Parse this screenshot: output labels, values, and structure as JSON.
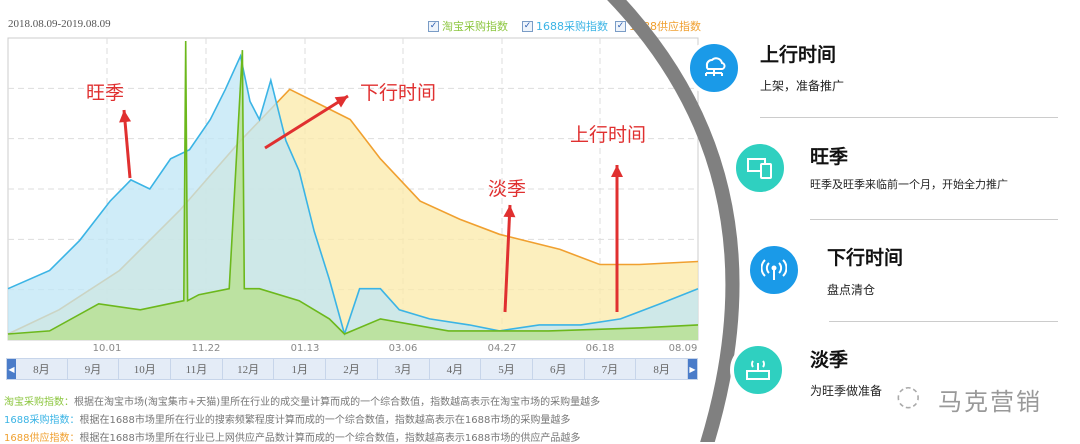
{
  "header": {
    "date_range": "2018.08.09-2019.08.09"
  },
  "legend": [
    {
      "label": "淘宝采购指数",
      "color": "#8cc63f",
      "checked": true
    },
    {
      "label": "1688采购指数",
      "color": "#3bb4e5",
      "checked": true
    },
    {
      "label": "1688供应指数",
      "color": "#f0a030",
      "checked": true
    }
  ],
  "chart_data": {
    "type": "area",
    "x_range": [
      "2018-08-09",
      "2019-08-09"
    ],
    "x_ticks": [
      "10.01",
      "11.22",
      "01.13",
      "03.06",
      "04.27",
      "06.18",
      "08.09"
    ],
    "y_axis_labels": false,
    "grid": true,
    "legend_position": "top-right",
    "series": [
      {
        "name": "1688供应指数",
        "color": "#f0a030",
        "fill": "#fbeaa8",
        "points": [
          [
            "2018-08-09",
            2
          ],
          [
            "2018-09-05",
            10
          ],
          [
            "2018-10-07",
            23
          ],
          [
            "2018-11-08",
            43
          ],
          [
            "2018-12-10",
            66
          ],
          [
            "2019-01-05",
            83
          ],
          [
            "2019-01-21",
            78
          ],
          [
            "2019-02-06",
            73
          ],
          [
            "2019-02-22",
            60
          ],
          [
            "2019-03-15",
            46
          ],
          [
            "2019-04-05",
            40
          ],
          [
            "2019-04-26",
            35
          ],
          [
            "2019-05-28",
            30
          ],
          [
            "2019-06-18",
            25
          ],
          [
            "2019-07-09",
            25
          ],
          [
            "2019-08-09",
            26
          ]
        ]
      },
      {
        "name": "1688采购指数",
        "color": "#3bb4e5",
        "fill": "#bfe6f5",
        "points": [
          [
            "2018-08-09",
            17
          ],
          [
            "2018-08-31",
            23
          ],
          [
            "2018-09-16",
            33
          ],
          [
            "2018-10-02",
            46
          ],
          [
            "2018-10-13",
            53
          ],
          [
            "2018-10-23",
            50
          ],
          [
            "2018-11-03",
            60
          ],
          [
            "2018-11-13",
            63
          ],
          [
            "2018-11-24",
            73
          ],
          [
            "2018-12-02",
            83
          ],
          [
            "2018-12-10",
            94
          ],
          [
            "2018-12-15",
            79
          ],
          [
            "2018-12-20",
            73
          ],
          [
            "2018-12-26",
            86
          ],
          [
            "2019-01-03",
            66
          ],
          [
            "2019-01-10",
            56
          ],
          [
            "2019-01-18",
            36
          ],
          [
            "2019-01-26",
            20
          ],
          [
            "2019-02-03",
            2
          ],
          [
            "2019-02-11",
            17
          ],
          [
            "2019-02-22",
            17
          ],
          [
            "2019-03-04",
            10
          ],
          [
            "2019-03-20",
            7
          ],
          [
            "2019-04-10",
            5
          ],
          [
            "2019-04-26",
            3
          ],
          [
            "2019-05-17",
            5
          ],
          [
            "2019-06-08",
            5
          ],
          [
            "2019-06-29",
            7
          ],
          [
            "2019-07-20",
            12
          ],
          [
            "2019-08-09",
            17
          ]
        ]
      },
      {
        "name": "淘宝采购指数",
        "color": "#6cb81c",
        "fill": "#b5e08a",
        "points": [
          [
            "2018-08-09",
            2
          ],
          [
            "2018-08-31",
            3
          ],
          [
            "2018-09-26",
            12
          ],
          [
            "2018-10-18",
            10
          ],
          [
            "2018-11-10",
            13
          ],
          [
            "2018-11-11",
            99
          ],
          [
            "2018-11-12",
            13
          ],
          [
            "2018-11-18",
            15
          ],
          [
            "2018-12-04",
            17
          ],
          [
            "2018-12-11",
            96
          ],
          [
            "2018-12-12",
            17
          ],
          [
            "2018-12-20",
            17
          ],
          [
            "2019-01-10",
            13
          ],
          [
            "2019-01-26",
            7
          ],
          [
            "2019-02-03",
            2
          ],
          [
            "2019-02-22",
            7
          ],
          [
            "2019-03-30",
            3
          ],
          [
            "2019-05-22",
            3
          ],
          [
            "2019-07-09",
            4
          ],
          [
            "2019-08-09",
            5
          ]
        ]
      }
    ],
    "annotations": [
      {
        "text": "旺季",
        "arrow": "up"
      },
      {
        "text": "下行时间",
        "arrow": "up-right"
      },
      {
        "text": "淡季",
        "arrow": "up"
      },
      {
        "text": "上行时间",
        "arrow": "up"
      }
    ]
  },
  "navigator": {
    "months": [
      "8月",
      "9月",
      "10月",
      "11月",
      "12月",
      "1月",
      "2月",
      "3月",
      "4月",
      "5月",
      "6月",
      "7月",
      "8月"
    ]
  },
  "descriptions": [
    {
      "term": "淘宝采购指数：",
      "color": "#8cc63f",
      "text": "根据在淘宝市场(淘宝集市+天猫)里所在行业的成交量计算而成的一个综合数值，指数越高表示在淘宝市场的采购量越多"
    },
    {
      "term": "1688采购指数：",
      "color": "#3bb4e5",
      "text": "根据在1688市场里所在行业的搜索频繁程度计算而成的一个综合数值，指数越高表示在1688市场的采购量越多"
    },
    {
      "term": "1688供应指数：",
      "color": "#f0a030",
      "text": "根据在1688市场里所在行业已上网供应产品数计算而成的一个综合数值，指数越高表示1688市场的供应产品越多"
    }
  ],
  "steps": [
    {
      "title": "上行时间",
      "subtitle": "上架，准备推广",
      "icon": "cloud-network-icon",
      "color": "#1a9ae8"
    },
    {
      "title": "旺季",
      "subtitle": "旺季及旺季来临前一个月，开始全力推广",
      "icon": "devices-icon",
      "color": "#2fd0c0"
    },
    {
      "title": "下行时间",
      "subtitle": "盘点清仓",
      "icon": "broadcast-icon",
      "color": "#1a9ae8"
    },
    {
      "title": "淡季",
      "subtitle": "为旺季做准备",
      "icon": "router-icon",
      "color": "#2fd0c0"
    }
  ],
  "watermark": "马克营销"
}
